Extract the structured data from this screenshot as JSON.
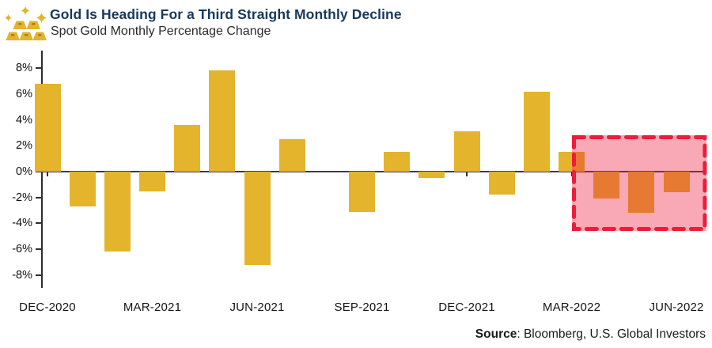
{
  "header": {
    "title": "Gold Is Heading For a Third Straight Monthly Decline",
    "subtitle": "Spot Gold Monthly Percentage Change",
    "icon": "gold-bars-icon"
  },
  "chart_data": {
    "type": "bar",
    "title": "Gold Is Heading For a Third Straight Monthly Decline",
    "subtitle": "Spot Gold Monthly Percentage Change",
    "categories": [
      "DEC-2020",
      "JAN-2021",
      "FEB-2021",
      "MAR-2021",
      "APR-2021",
      "MAY-2021",
      "JUN-2021",
      "JUL-2021",
      "AUG-2021",
      "SEP-2021",
      "OCT-2021",
      "NOV-2021",
      "DEC-2021",
      "JAN-2022",
      "FEB-2022",
      "MAR-2022",
      "APR-2022",
      "MAY-2022",
      "JUN-2022"
    ],
    "values": [
      6.8,
      -2.7,
      -6.2,
      -1.5,
      3.6,
      7.8,
      -7.2,
      2.5,
      0.0,
      -3.1,
      1.5,
      -0.5,
      3.1,
      -1.8,
      6.2,
      1.5,
      -2.1,
      -3.2,
      -1.6
    ],
    "x_tick_labels": [
      "DEC-2020",
      "MAR-2021",
      "JUN-2021",
      "SEP-2021",
      "DEC-2021",
      "MAR-2022",
      "JUN-2022"
    ],
    "y_ticks": [
      "8%",
      "6%",
      "4%",
      "2%",
      "0%",
      "-2%",
      "-4%",
      "-6%",
      "-8%"
    ],
    "ylim": [
      -9.3,
      9.3
    ],
    "grid": false,
    "legend": false,
    "bar_color": "#E3B42C",
    "bar_color_in_highlight": "#E87B32",
    "highlight": {
      "meaning": "third straight monthly decline",
      "from_category": "MAR-2022",
      "to_category": "JUN-2022",
      "value_top": 2.8,
      "value_bottom": -4.6,
      "fill": "rgba(240,30,60,0.38)",
      "border_color": "#EE1C3A"
    }
  },
  "footer": {
    "source_label": "Source",
    "source_rest": ": Bloomberg, U.S. Global Investors"
  },
  "colors": {
    "title_navy": "#17395C",
    "subtitle_gray": "#2B2B2B",
    "axis": "#2F2F2F",
    "gold": "#E3B42C",
    "highlight_pink": "#F9AAB5",
    "highlight_red": "#EE1C3A"
  }
}
